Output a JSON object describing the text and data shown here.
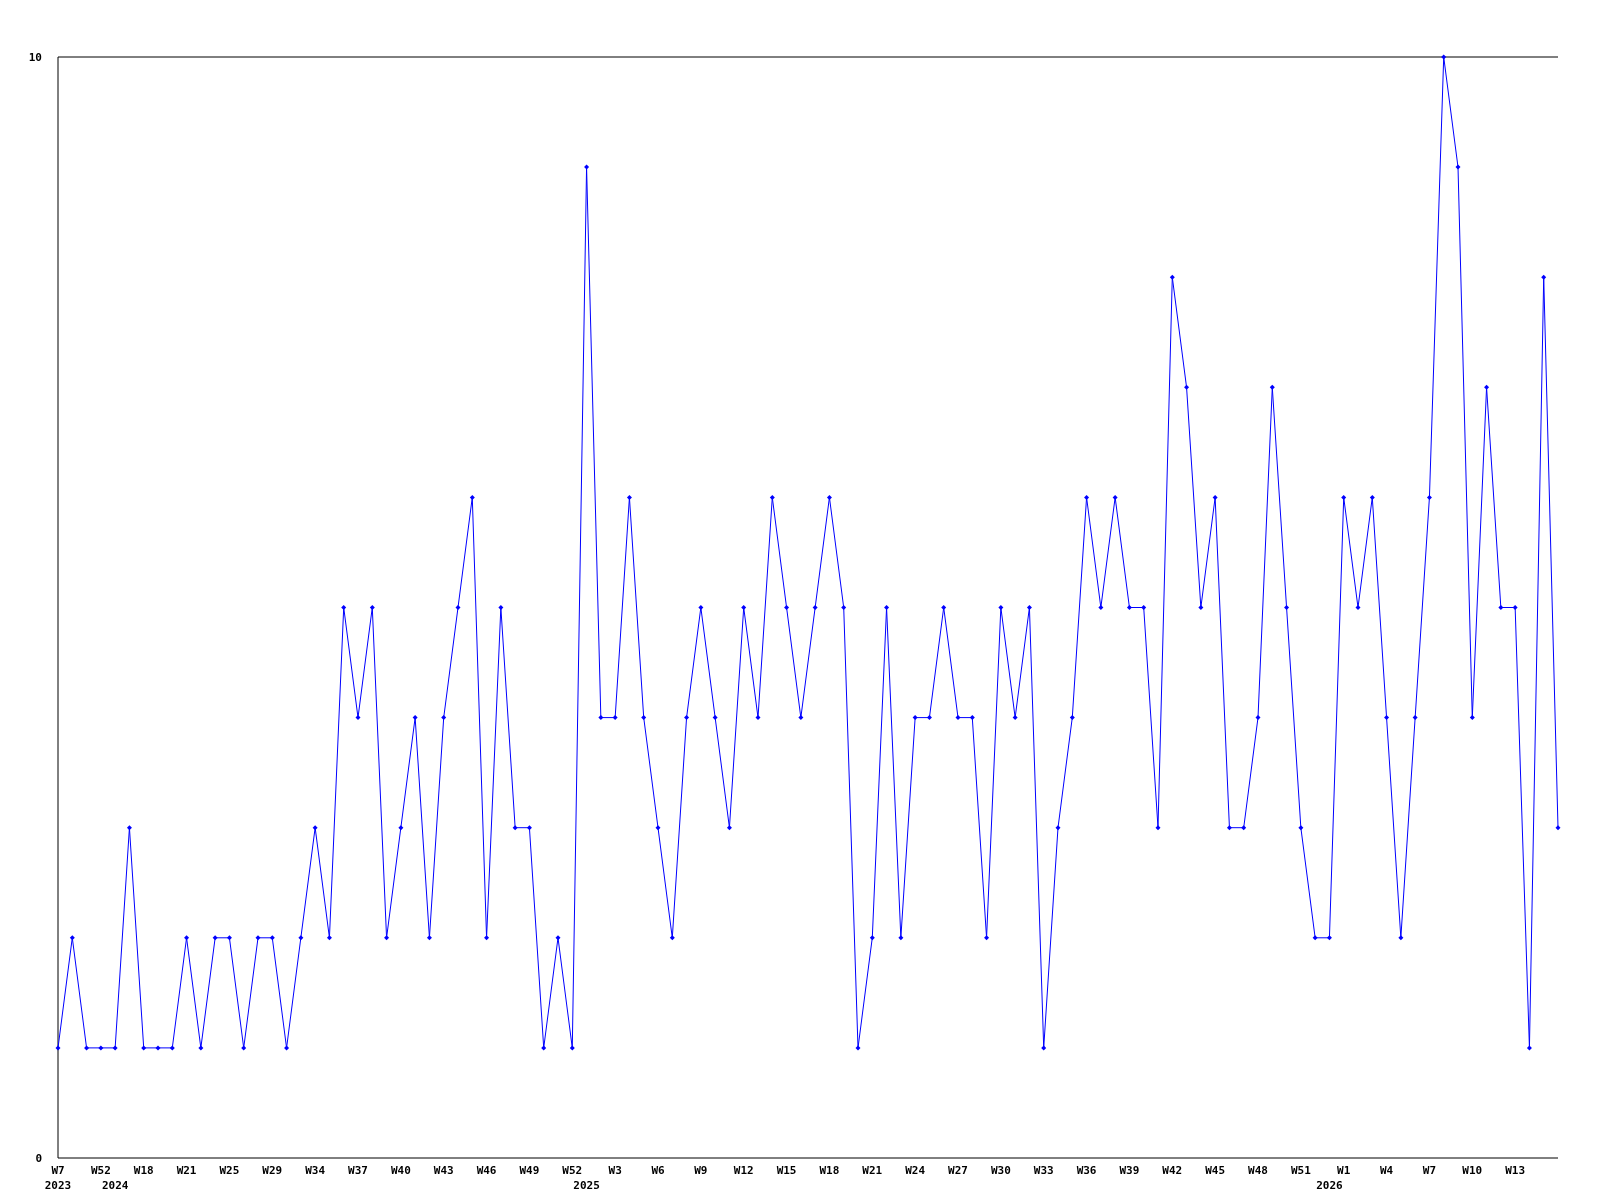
{
  "chart_data": {
    "type": "line",
    "categories": [
      "W7\n2023",
      null,
      null,
      "W52",
      "\n2024",
      null,
      "W18",
      null,
      null,
      "W21",
      null,
      null,
      "W25",
      null,
      null,
      "W29",
      null,
      null,
      "W34",
      null,
      null,
      "W37",
      null,
      null,
      "W40",
      null,
      null,
      "W43",
      null,
      null,
      "W46",
      null,
      null,
      "W49",
      null,
      null,
      "W52",
      "\n2025",
      null,
      "W3",
      null,
      null,
      "W6",
      null,
      null,
      "W9",
      null,
      null,
      "W12",
      null,
      null,
      "W15",
      null,
      null,
      "W18",
      null,
      null,
      "W21",
      null,
      null,
      "W24",
      null,
      null,
      "W27",
      null,
      null,
      "W30",
      null,
      null,
      "W33",
      null,
      null,
      "W36",
      null,
      null,
      "W39",
      null,
      null,
      "W42",
      null,
      null,
      "W45",
      null,
      null,
      "W48",
      null,
      null,
      "W51",
      null,
      "\n2026",
      "W1",
      null,
      null,
      "W4",
      null,
      null,
      "W7",
      null,
      null,
      "W10",
      null,
      null,
      "W13",
      null,
      null,
      null
    ],
    "series": [
      {
        "color": "#0000ff",
        "values": [
          1,
          2,
          1,
          1,
          1,
          3,
          1,
          1,
          1,
          2,
          1,
          2,
          2,
          1,
          2,
          2,
          1,
          2,
          3,
          2,
          5,
          4,
          5,
          2,
          3,
          4,
          2,
          4,
          5,
          6,
          2,
          5,
          3,
          3,
          1,
          2,
          1,
          9,
          4,
          4,
          6,
          4,
          3,
          2,
          4,
          5,
          4,
          3,
          5,
          4,
          6,
          5,
          4,
          5,
          6,
          5,
          1,
          2,
          5,
          2,
          4,
          4,
          5,
          4,
          4,
          2,
          5,
          4,
          5,
          1,
          3,
          4,
          6,
          5,
          6,
          5,
          5,
          3,
          8,
          7,
          5,
          6,
          3,
          3,
          4,
          7,
          5,
          3,
          2,
          2,
          6,
          5,
          6,
          4,
          2,
          4,
          6,
          10,
          9,
          4,
          7,
          5,
          5,
          1,
          8,
          3
        ]
      }
    ],
    "ylim": [
      0,
      10
    ],
    "yticks": [
      0,
      10
    ],
    "grid": false,
    "marker": "diamond",
    "line_style": "solid"
  }
}
